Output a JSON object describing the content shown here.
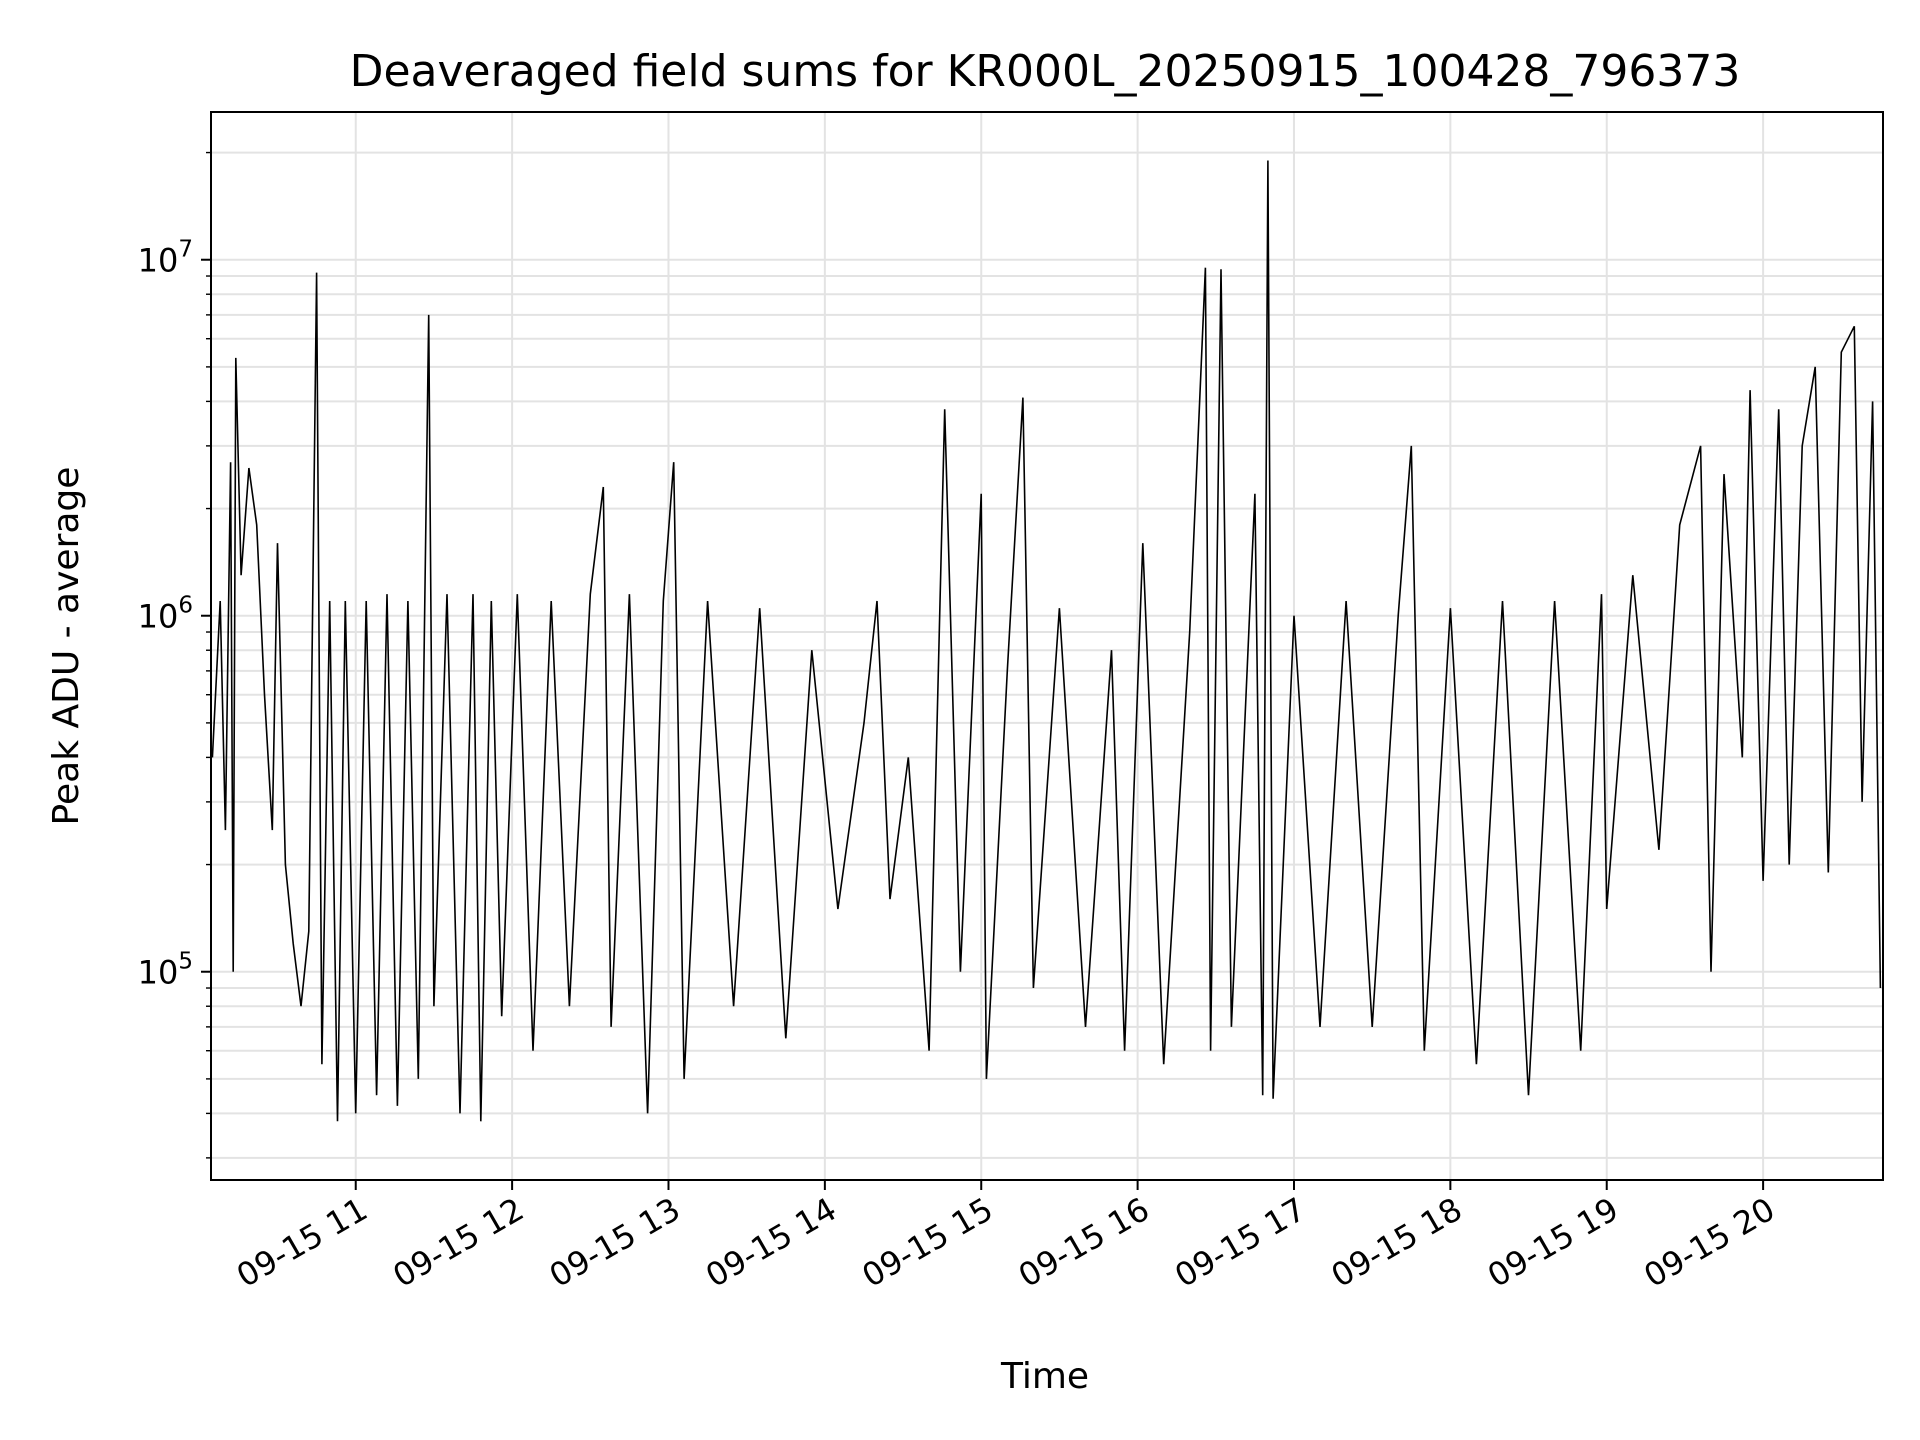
{
  "chart_data": {
    "type": "line",
    "title": "Deaveraged field sums for KR000L_20250915_100428_796373",
    "xlabel": "Time",
    "ylabel": "Peak ADU - average",
    "yscale": "log",
    "ylim": [
      26000,
      26000000
    ],
    "xlim": [
      "2025-09-15 10:04:28",
      "2025-09-15 20:46:00"
    ],
    "grid": true,
    "line_color": "#000000",
    "x_ticks": [
      {
        "label": "09-15 11",
        "time": "2025-09-15 11:00"
      },
      {
        "label": "09-15 12",
        "time": "2025-09-15 12:00"
      },
      {
        "label": "09-15 13",
        "time": "2025-09-15 13:00"
      },
      {
        "label": "09-15 14",
        "time": "2025-09-15 14:00"
      },
      {
        "label": "09-15 15",
        "time": "2025-09-15 15:00"
      },
      {
        "label": "09-15 16",
        "time": "2025-09-15 16:00"
      },
      {
        "label": "09-15 17",
        "time": "2025-09-15 17:00"
      },
      {
        "label": "09-15 18",
        "time": "2025-09-15 18:00"
      },
      {
        "label": "09-15 19",
        "time": "2025-09-15 19:00"
      },
      {
        "label": "09-15 20",
        "time": "2025-09-15 20:00"
      }
    ],
    "y_ticks": [
      {
        "base": "10",
        "exp": "5",
        "value": 100000
      },
      {
        "base": "10",
        "exp": "6",
        "value": 1000000
      },
      {
        "base": "10",
        "exp": "7",
        "value": 10000000
      }
    ],
    "series": [
      {
        "points": [
          [
            "2025-09-15 10:05",
            400000
          ],
          [
            "2025-09-15 10:08",
            1100000
          ],
          [
            "2025-09-15 10:10",
            250000
          ],
          [
            "2025-09-15 10:12",
            2700000
          ],
          [
            "2025-09-15 10:13",
            100000
          ],
          [
            "2025-09-15 10:14",
            5300000
          ],
          [
            "2025-09-15 10:16",
            1300000
          ],
          [
            "2025-09-15 10:19",
            2600000
          ],
          [
            "2025-09-15 10:22",
            1800000
          ],
          [
            "2025-09-15 10:25",
            600000
          ],
          [
            "2025-09-15 10:28",
            250000
          ],
          [
            "2025-09-15 10:30",
            1600000
          ],
          [
            "2025-09-15 10:33",
            200000
          ],
          [
            "2025-09-15 10:36",
            120000
          ],
          [
            "2025-09-15 10:39",
            80000
          ],
          [
            "2025-09-15 10:42",
            130000
          ],
          [
            "2025-09-15 10:45",
            9200000
          ],
          [
            "2025-09-15 10:47",
            55000
          ],
          [
            "2025-09-15 10:50",
            1100000
          ],
          [
            "2025-09-15 10:53",
            38000
          ],
          [
            "2025-09-15 10:56",
            1100000
          ],
          [
            "2025-09-15 11:00",
            40000
          ],
          [
            "2025-09-15 11:04",
            1100000
          ],
          [
            "2025-09-15 11:08",
            45000
          ],
          [
            "2025-09-15 11:12",
            1150000
          ],
          [
            "2025-09-15 11:16",
            42000
          ],
          [
            "2025-09-15 11:20",
            1100000
          ],
          [
            "2025-09-15 11:24",
            50000
          ],
          [
            "2025-09-15 11:28",
            7000000
          ],
          [
            "2025-09-15 11:30",
            80000
          ],
          [
            "2025-09-15 11:35",
            1150000
          ],
          [
            "2025-09-15 11:40",
            40000
          ],
          [
            "2025-09-15 11:45",
            1150000
          ],
          [
            "2025-09-15 11:48",
            38000
          ],
          [
            "2025-09-15 11:52",
            1100000
          ],
          [
            "2025-09-15 11:56",
            75000
          ],
          [
            "2025-09-15 12:02",
            1150000
          ],
          [
            "2025-09-15 12:08",
            60000
          ],
          [
            "2025-09-15 12:15",
            1100000
          ],
          [
            "2025-09-15 12:22",
            80000
          ],
          [
            "2025-09-15 12:30",
            1150000
          ],
          [
            "2025-09-15 12:35",
            2300000
          ],
          [
            "2025-09-15 12:38",
            70000
          ],
          [
            "2025-09-15 12:45",
            1150000
          ],
          [
            "2025-09-15 12:52",
            40000
          ],
          [
            "2025-09-15 12:58",
            1100000
          ],
          [
            "2025-09-15 13:02",
            2700000
          ],
          [
            "2025-09-15 13:06",
            50000
          ],
          [
            "2025-09-15 13:15",
            1100000
          ],
          [
            "2025-09-15 13:25",
            80000
          ],
          [
            "2025-09-15 13:35",
            1050000
          ],
          [
            "2025-09-15 13:45",
            65000
          ],
          [
            "2025-09-15 13:55",
            800000
          ],
          [
            "2025-09-15 14:05",
            150000
          ],
          [
            "2025-09-15 14:15",
            500000
          ],
          [
            "2025-09-15 14:20",
            1100000
          ],
          [
            "2025-09-15 14:25",
            160000
          ],
          [
            "2025-09-15 14:32",
            400000
          ],
          [
            "2025-09-15 14:40",
            60000
          ],
          [
            "2025-09-15 14:46",
            3800000
          ],
          [
            "2025-09-15 14:52",
            100000
          ],
          [
            "2025-09-15 15:00",
            2200000
          ],
          [
            "2025-09-15 15:02",
            50000
          ],
          [
            "2025-09-15 15:10",
            700000
          ],
          [
            "2025-09-15 15:16",
            4100000
          ],
          [
            "2025-09-15 15:20",
            90000
          ],
          [
            "2025-09-15 15:30",
            1050000
          ],
          [
            "2025-09-15 15:40",
            70000
          ],
          [
            "2025-09-15 15:50",
            800000
          ],
          [
            "2025-09-15 15:55",
            60000
          ],
          [
            "2025-09-15 16:02",
            1600000
          ],
          [
            "2025-09-15 16:10",
            55000
          ],
          [
            "2025-09-15 16:20",
            900000
          ],
          [
            "2025-09-15 16:26",
            9500000
          ],
          [
            "2025-09-15 16:28",
            60000
          ],
          [
            "2025-09-15 16:32",
            9400000
          ],
          [
            "2025-09-15 16:36",
            70000
          ],
          [
            "2025-09-15 16:45",
            2200000
          ],
          [
            "2025-09-15 16:48",
            45000
          ],
          [
            "2025-09-15 16:50",
            19000000
          ],
          [
            "2025-09-15 16:52",
            44000
          ],
          [
            "2025-09-15 17:00",
            1000000
          ],
          [
            "2025-09-15 17:10",
            70000
          ],
          [
            "2025-09-15 17:20",
            1100000
          ],
          [
            "2025-09-15 17:30",
            70000
          ],
          [
            "2025-09-15 17:40",
            1000000
          ],
          [
            "2025-09-15 17:45",
            3000000
          ],
          [
            "2025-09-15 17:50",
            60000
          ],
          [
            "2025-09-15 18:00",
            1050000
          ],
          [
            "2025-09-15 18:10",
            55000
          ],
          [
            "2025-09-15 18:20",
            1100000
          ],
          [
            "2025-09-15 18:30",
            45000
          ],
          [
            "2025-09-15 18:40",
            1100000
          ],
          [
            "2025-09-15 18:50",
            60000
          ],
          [
            "2025-09-15 18:58",
            1150000
          ],
          [
            "2025-09-15 19:00",
            150000
          ],
          [
            "2025-09-15 19:10",
            1300000
          ],
          [
            "2025-09-15 19:20",
            220000
          ],
          [
            "2025-09-15 19:28",
            1800000
          ],
          [
            "2025-09-15 19:36",
            3000000
          ],
          [
            "2025-09-15 19:40",
            100000
          ],
          [
            "2025-09-15 19:45",
            2500000
          ],
          [
            "2025-09-15 19:52",
            400000
          ],
          [
            "2025-09-15 19:55",
            4300000
          ],
          [
            "2025-09-15 20:00",
            180000
          ],
          [
            "2025-09-15 20:06",
            3800000
          ],
          [
            "2025-09-15 20:10",
            200000
          ],
          [
            "2025-09-15 20:15",
            3000000
          ],
          [
            "2025-09-15 20:20",
            5000000
          ],
          [
            "2025-09-15 20:25",
            190000
          ],
          [
            "2025-09-15 20:30",
            5500000
          ],
          [
            "2025-09-15 20:35",
            6500000
          ],
          [
            "2025-09-15 20:38",
            300000
          ],
          [
            "2025-09-15 20:42",
            4000000
          ],
          [
            "2025-09-15 20:45",
            90000
          ]
        ]
      }
    ]
  }
}
